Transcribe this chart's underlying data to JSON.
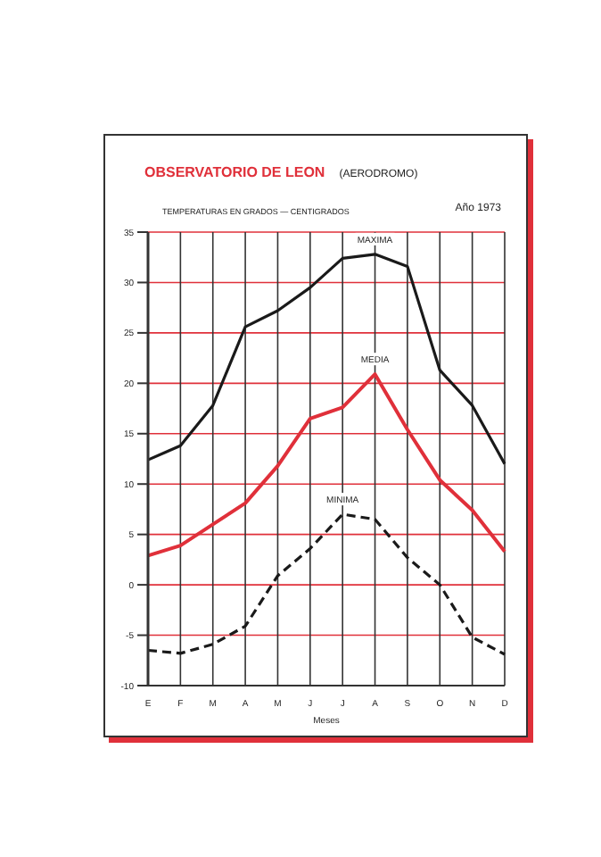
{
  "chart_data": {
    "type": "line",
    "title": "OBSERVATORIO DE LEON",
    "subtitle": "(AERODROMO)",
    "ylabel": "TEMPERATURAS EN GRADOS — CENTIGRADOS",
    "xlabel": "Meses",
    "annotations": [
      "Año 1973"
    ],
    "categories": [
      "E",
      "F",
      "M",
      "A",
      "M",
      "J",
      "J",
      "A",
      "S",
      "O",
      "N",
      "D"
    ],
    "series": [
      {
        "name": "MAXIMA",
        "color": "#1a1a1a",
        "line_style": "solid",
        "values": [
          12.4,
          13.8,
          17.8,
          25.6,
          27.2,
          29.5,
          32.4,
          32.8,
          31.6,
          21.3,
          17.8,
          12
        ]
      },
      {
        "name": "MEDIA",
        "color": "#e0303a",
        "line_style": "solid",
        "values": [
          2.9,
          3.9,
          6,
          8.1,
          11.8,
          16.5,
          17.6,
          20.9,
          15.4,
          10.4,
          7.4,
          3.3
        ]
      },
      {
        "name": "MINIMA",
        "color": "#1a1a1a",
        "line_style": "dashed",
        "values": [
          -6.5,
          -6.8,
          -5.9,
          -4.1,
          0.9,
          3.6,
          7,
          6.5,
          2.7,
          0,
          -5.2,
          -6.9
        ]
      }
    ],
    "ylim": [
      -10,
      35
    ],
    "yticks": [
      -10,
      -5,
      0,
      5,
      10,
      15,
      20,
      25,
      30,
      35
    ],
    "grid": true,
    "marker": "none"
  }
}
